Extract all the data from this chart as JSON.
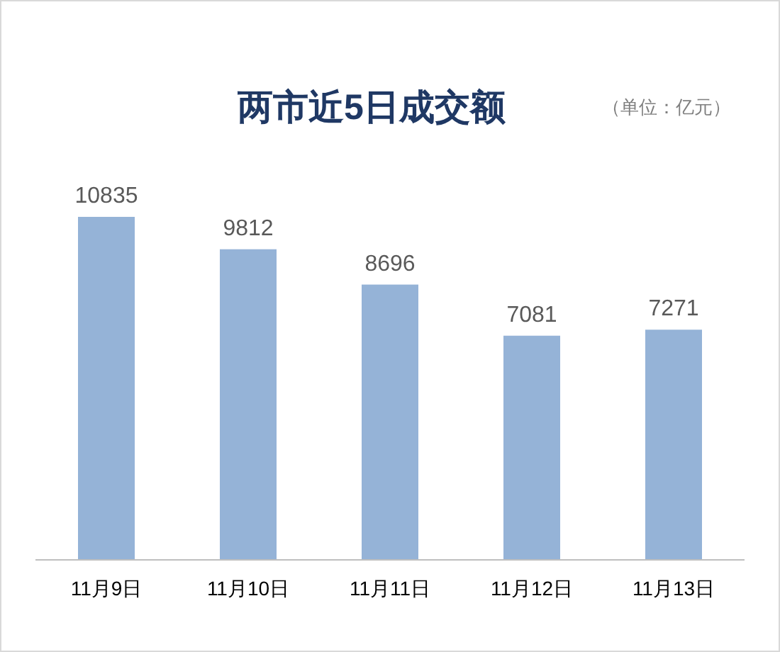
{
  "chart_data": {
    "type": "bar",
    "title": "两市近5日成交额",
    "annotations": [
      "（单位：亿元）"
    ],
    "categories": [
      "11月9日",
      "11月10日",
      "11月11日",
      "11月12日",
      "11月13日"
    ],
    "values": [
      10835,
      9812,
      8696,
      7081,
      7271
    ],
    "color": "#95b3d7",
    "data_labels": true
  }
}
